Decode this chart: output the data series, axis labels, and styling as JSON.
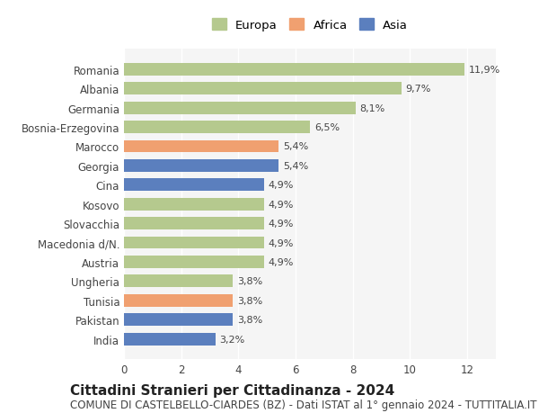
{
  "categories": [
    "Romania",
    "Albania",
    "Germania",
    "Bosnia-Erzegovina",
    "Marocco",
    "Georgia",
    "Cina",
    "Kosovo",
    "Slovacchia",
    "Macedonia d/N.",
    "Austria",
    "Ungheria",
    "Tunisia",
    "Pakistan",
    "India"
  ],
  "values": [
    11.9,
    9.7,
    8.1,
    6.5,
    5.4,
    5.4,
    4.9,
    4.9,
    4.9,
    4.9,
    4.9,
    3.8,
    3.8,
    3.8,
    3.2
  ],
  "labels": [
    "11,9%",
    "9,7%",
    "8,1%",
    "6,5%",
    "5,4%",
    "5,4%",
    "4,9%",
    "4,9%",
    "4,9%",
    "4,9%",
    "4,9%",
    "3,8%",
    "3,8%",
    "3,8%",
    "3,2%"
  ],
  "colors": [
    "#b5c98e",
    "#b5c98e",
    "#b5c98e",
    "#b5c98e",
    "#f0a070",
    "#5b7fbe",
    "#5b7fbe",
    "#b5c98e",
    "#b5c98e",
    "#b5c98e",
    "#b5c98e",
    "#b5c98e",
    "#f0a070",
    "#5b7fbe",
    "#5b7fbe"
  ],
  "legend_labels": [
    "Europa",
    "Africa",
    "Asia"
  ],
  "legend_colors": [
    "#b5c98e",
    "#f0a070",
    "#5b7fbe"
  ],
  "title": "Cittadini Stranieri per Cittadinanza - 2024",
  "subtitle": "COMUNE DI CASTELBELLO-CIARDES (BZ) - Dati ISTAT al 1° gennaio 2024 - TUTTITALIA.IT",
  "xlim": [
    0,
    13
  ],
  "xticks": [
    0,
    2,
    4,
    6,
    8,
    10,
    12
  ],
  "background_color": "#ffffff",
  "bar_background": "#f5f5f5",
  "grid_color": "#ffffff",
  "title_fontsize": 11,
  "subtitle_fontsize": 8.5,
  "label_fontsize": 8,
  "tick_fontsize": 8.5
}
